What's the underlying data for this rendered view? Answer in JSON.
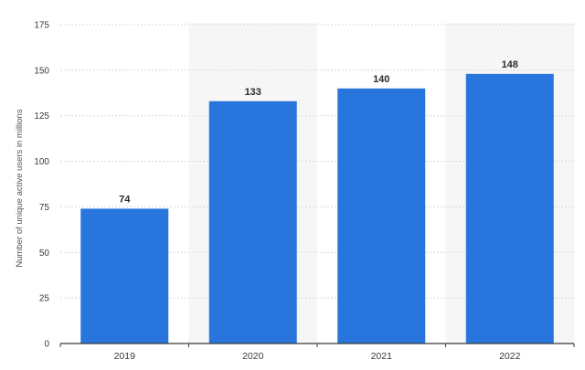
{
  "chart_data": {
    "type": "bar",
    "categories": [
      "2019",
      "2020",
      "2021",
      "2022"
    ],
    "values": [
      74,
      133,
      140,
      148
    ],
    "title": "",
    "xlabel": "",
    "ylabel": "Number of unique active users in millions",
    "ylim": [
      0,
      175
    ],
    "yticks": [
      0,
      25,
      50,
      75,
      100,
      125,
      150,
      175
    ],
    "grid": true,
    "colors": {
      "bar": "#2876dd",
      "band": "#f6f6f6",
      "grid": "#d9d9d9",
      "axis": "#3a3a3a"
    }
  }
}
